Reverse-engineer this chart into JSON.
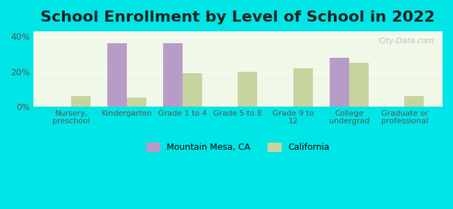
{
  "title": "School Enrollment by Level of School in 2022",
  "categories": [
    "Nursery,\npreschool",
    "Kindergarten",
    "Grade 1 to 4",
    "Grade 5 to 8",
    "Grade 9 to\n12",
    "College\nundergrad",
    "Graduate or\nprofessional"
  ],
  "mountain_mesa": [
    0,
    36,
    36,
    0,
    0,
    28,
    0
  ],
  "california": [
    6,
    5,
    19,
    20,
    22,
    25,
    6
  ],
  "mountain_mesa_color": "#b89cc8",
  "california_color": "#c8d4a0",
  "background_outer": "#00e5e5",
  "background_inner_top": "#f0f8e8",
  "background_inner_bottom": "#e8f5e0",
  "yticks": [
    0,
    20,
    40
  ],
  "ylim": [
    0,
    43
  ],
  "title_fontsize": 16,
  "legend_mm": "Mountain Mesa, CA",
  "legend_ca": "California",
  "watermark": "City-Data.com"
}
